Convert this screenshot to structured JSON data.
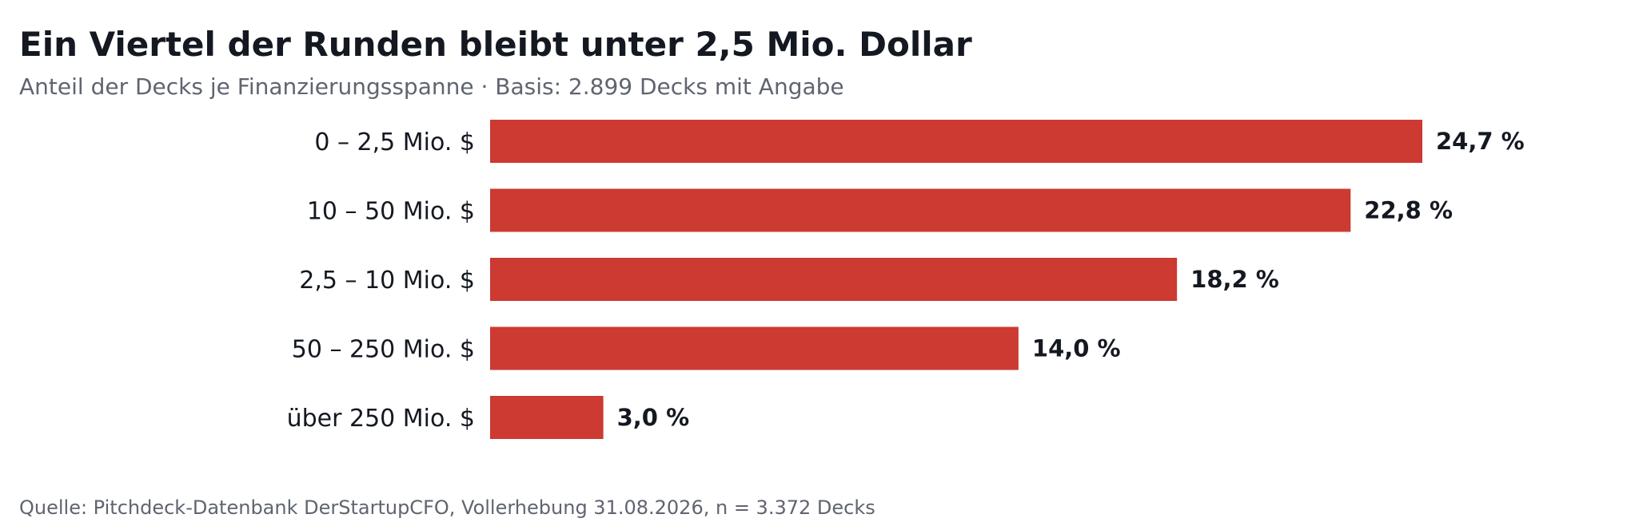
{
  "chart_data": {
    "type": "bar",
    "orientation": "horizontal",
    "title": "Ein Viertel der Runden bleibt unter 2,5 Mio. Dollar",
    "subtitle": "Anteil der Decks je Finanzierungsspanne · Basis: 2.899 Decks mit Angabe",
    "categories": [
      "0 – 2,5 Mio. $",
      "10 – 50 Mio. $",
      "2,5 – 10 Mio. $",
      "50 – 250 Mio. $",
      "über 250 Mio. $"
    ],
    "values": [
      24.7,
      22.8,
      18.2,
      14.0,
      3.0
    ],
    "value_labels": [
      "24,7 %",
      "22,8 %",
      "18,2 %",
      "14,0 %",
      "3,0 %"
    ],
    "unit": "%",
    "xlim": [
      0,
      24.7
    ],
    "bar_color": "#cc3a31",
    "grid": false,
    "legend": "none",
    "source": "Quelle: Pitchdeck-Datenbank DerStartupCFO, Vollerhebung 31.08.2026, n = 3.372 Decks"
  }
}
